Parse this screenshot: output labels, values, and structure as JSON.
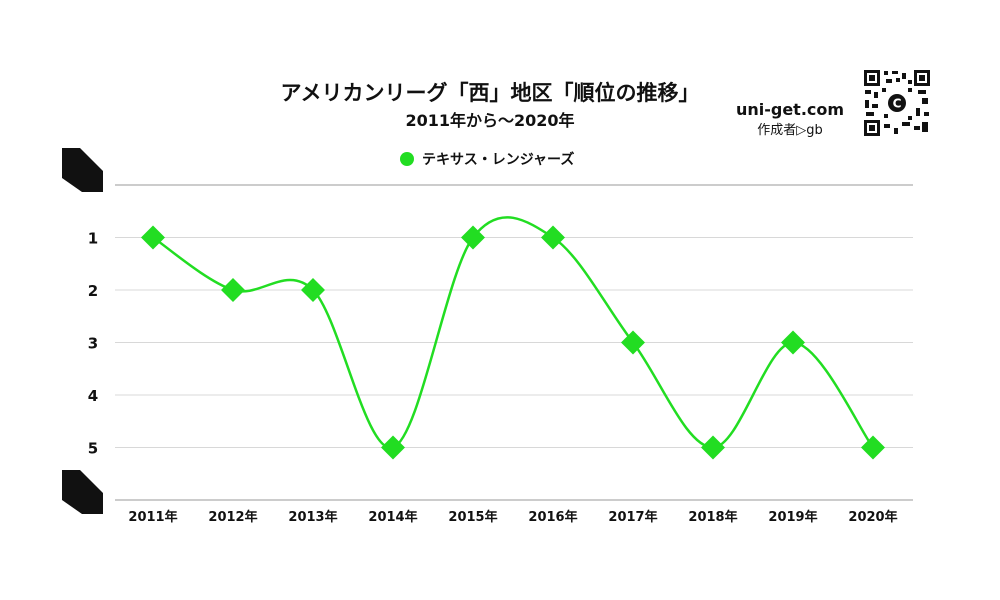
{
  "header": {
    "title": "アメリカンリーグ「西」地区「順位の推移」",
    "subtitle": "2011年から～2020年",
    "brand": "uni-get.com",
    "author": "作成者▷gb"
  },
  "chart_data": {
    "type": "line",
    "title": "アメリカンリーグ「西」地区「順位の推移」",
    "subtitle": "2011年から～2020年",
    "categories": [
      "2011年",
      "2012年",
      "2013年",
      "2014年",
      "2015年",
      "2016年",
      "2017年",
      "2018年",
      "2019年",
      "2020年"
    ],
    "series": [
      {
        "name": "テキサス・レンジャーズ",
        "values": [
          1,
          2,
          2,
          5,
          1,
          1,
          3,
          5,
          3,
          5
        ],
        "color": "#22dd22",
        "marker": "diamond"
      }
    ],
    "y_ticks": [
      "1",
      "2",
      "3",
      "4",
      "5"
    ],
    "ylim": [
      0,
      6
    ],
    "y_inverted": true,
    "grid": true,
    "legend_position": "top-center"
  }
}
